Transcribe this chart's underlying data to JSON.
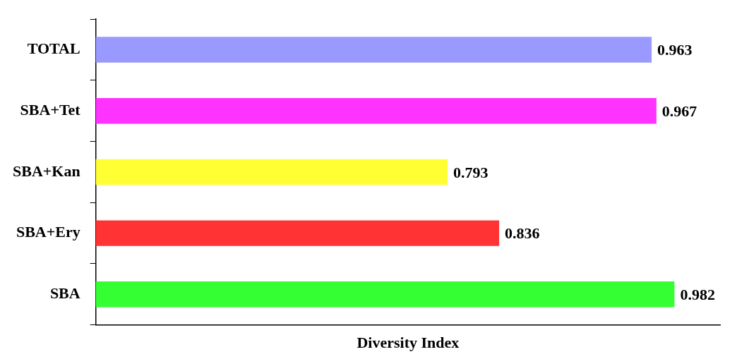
{
  "chart_data": {
    "type": "bar",
    "orientation": "horizontal",
    "xlabel": "Diversity Index",
    "categories": [
      "TOTAL",
      "SBA+Tet",
      "SBA+Kan",
      "SBA+Ery",
      "SBA"
    ],
    "values": [
      0.963,
      0.967,
      0.793,
      0.836,
      0.982
    ],
    "colors": [
      "#9999ff",
      "#ff33ff",
      "#ffff33",
      "#ff3333",
      "#33ff33"
    ],
    "xlim": [
      0.5,
      1.02
    ],
    "tick_labels": "y",
    "data_labels": true,
    "legend": false
  }
}
